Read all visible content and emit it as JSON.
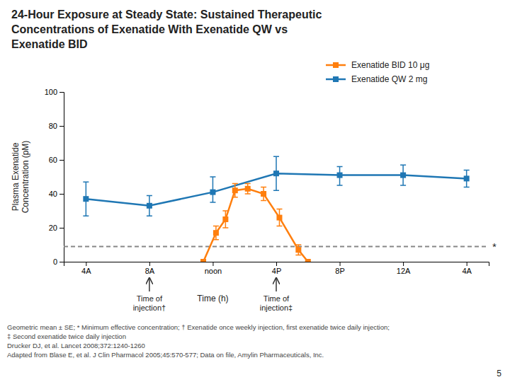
{
  "chart_data": {
    "type": "line",
    "title": "24-Hour Exposure at Steady State: Sustained Therapeutic\nConcentrations of Exenatide With Exenatide QW vs\nExenatide BID",
    "xlabel": "Time (h)",
    "ylabel": "Plasma Exenatide\nConcentration (pM)",
    "xlim": [
      -0.35,
      6.35
    ],
    "xticks": [
      {
        "value": 0,
        "label": "4A"
      },
      {
        "value": 1,
        "label": "8A"
      },
      {
        "value": 2,
        "label": "noon"
      },
      {
        "value": 3,
        "label": "4P"
      },
      {
        "value": 4,
        "label": "8P"
      },
      {
        "value": 5,
        "label": "12A"
      },
      {
        "value": 6,
        "label": "4A"
      }
    ],
    "ylim": [
      0,
      100
    ],
    "yticks": [
      0,
      20,
      40,
      60,
      80,
      100
    ],
    "grid": false,
    "legend": "upper right",
    "series": [
      {
        "name": "Exenatide QW 2 mg",
        "marker": "square",
        "x": [
          0,
          1,
          2,
          3,
          4,
          5,
          6
        ],
        "values": [
          37,
          33,
          41,
          52,
          51,
          51,
          49
        ],
        "error_lo": [
          10,
          6,
          6,
          10,
          6,
          6,
          5
        ],
        "error_hi": [
          10,
          6,
          9,
          10,
          5,
          6,
          5
        ]
      },
      {
        "name": "Exenatide BID 10 μg",
        "marker": "square",
        "x": [
          1.85,
          2.05,
          2.2,
          2.35,
          2.55,
          2.8,
          3.05,
          3.35,
          3.5
        ],
        "values": [
          0,
          17,
          25,
          42,
          43,
          40,
          26,
          7,
          0
        ],
        "error_lo": [
          0,
          4,
          5,
          4,
          3,
          4,
          5,
          3,
          0
        ],
        "error_hi": [
          0,
          4,
          5,
          4,
          3,
          4,
          5,
          3,
          0
        ]
      }
    ],
    "hline": {
      "y": 9,
      "label": "*",
      "line_style": "dashed"
    },
    "annotations": [
      {
        "text": "Time of\ninjection†",
        "x": 1
      },
      {
        "text": "Time of\ninjection‡",
        "x": 3
      }
    ],
    "footnotes": [
      "Geometric mean ± SE; * Minimum effective concentration; † Exenatide once weekly injection, first exenatide twice daily injection;",
      "‡ Second exenatide twice daily injection",
      "Drucker DJ, et al. Lancet 2008;372:1240-1260",
      "Adapted from Blase E, et al. J Clin Pharmacol 2005;45:570-577; Data on file, Amylin Pharmaceuticals, Inc."
    ],
    "page_number": "5"
  }
}
